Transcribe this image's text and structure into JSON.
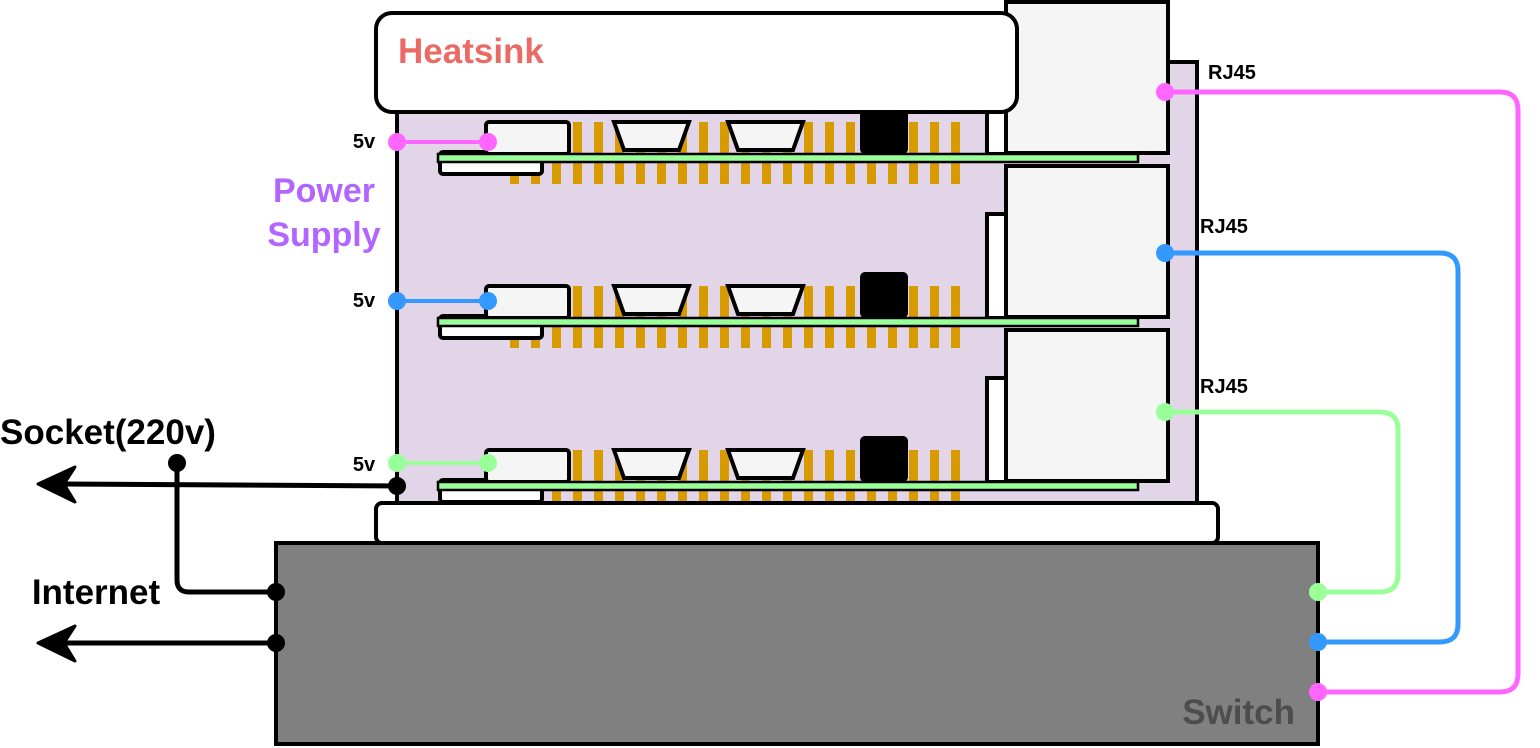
{
  "labels": {
    "heatsink": "Heatsink",
    "power_supply_line1": "Power",
    "power_supply_line2": "Supply",
    "socket": "Socket(220v)",
    "internet": "Internet",
    "switch": "Switch",
    "rj45_top": "RJ45",
    "rj45_middle": "RJ45",
    "rj45_bottom": "RJ45",
    "power_5v_top": "5v",
    "power_5v_middle": "5v",
    "power_5v_bottom": "5v"
  },
  "colors": {
    "cable_top": "#ff66ff",
    "cable_middle": "#3399ff",
    "cable_bottom": "#99ff99",
    "heatsink_text": "#ea6b66",
    "power_supply_text": "#b266ff",
    "switch_fill": "#808080",
    "switch_text": "#4d4d4d",
    "enclosure_fill": "#e1d5e7",
    "gpio_pins": "#d79b00"
  }
}
